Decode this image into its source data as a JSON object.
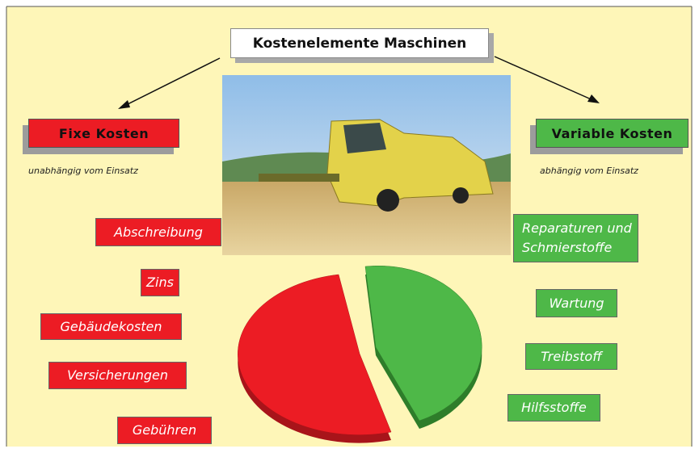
{
  "title": "Kostenelemente Maschinen",
  "fixed": {
    "label": "Fixe Kosten",
    "note": "unabhängig vom Einsatz",
    "items": [
      "Abschreibung",
      "Zins",
      "Gebäudekosten",
      "Versicherungen",
      "Gebühren"
    ]
  },
  "variable": {
    "label": "Variable Kosten",
    "note": "abhängig vom Einsatz",
    "items": [
      "Reparaturen und Schmierstoffe",
      "Wartung",
      "Treibstoff",
      "Hilfsstoffe"
    ]
  }
}
